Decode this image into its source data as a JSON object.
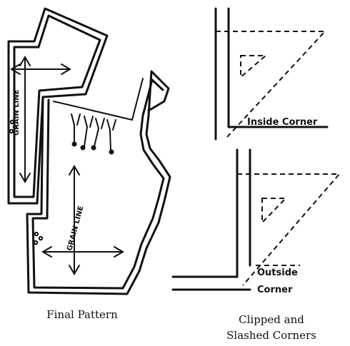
{
  "left_figure": {
    "upper_piece_label": "GRAIN LINE",
    "lower_piece_label": "GRAIN LINE",
    "caption": "Final Pattern"
  },
  "right_figure": {
    "inside_label": "Inside Corner",
    "outside_label_line1": "Outside",
    "outside_label_line2": "Corner",
    "caption_line1": "Clipped and",
    "caption_line2": "Slashed Corners"
  }
}
